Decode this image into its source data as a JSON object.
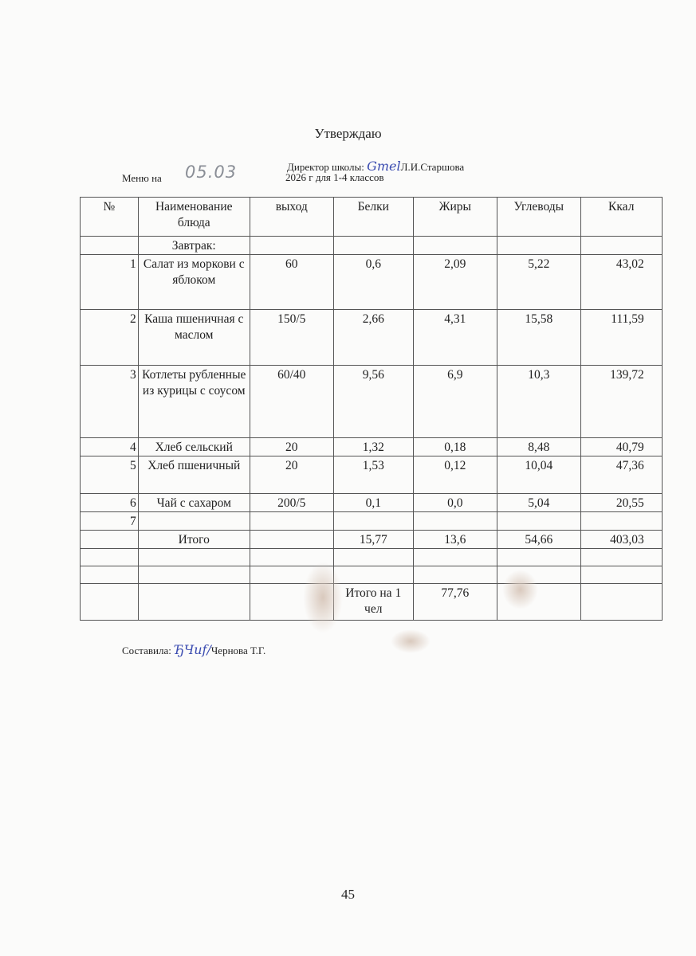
{
  "header": {
    "title": "Утверждаю",
    "director_label": "Директор школы:",
    "director_signature": "signature",
    "director_name": "Л.И.Старшова",
    "menu_label": "Меню на",
    "menu_date": "05.03",
    "year_line": "2026 г для 1-4 классов"
  },
  "table": {
    "columns": [
      "№",
      "Наименование блюда",
      "выход",
      "Белки",
      "Жиры",
      "Углеводы",
      "Ккал"
    ],
    "section": "Завтрак:",
    "rows": [
      [
        "1",
        "Салат из моркови с яблоком",
        "60",
        "0,6",
        "2,09",
        "5,22",
        "43,02"
      ],
      [
        "2",
        "Каша пшеничная с маслом",
        "150/5",
        "2,66",
        "4,31",
        "15,58",
        "111,59"
      ],
      [
        "3",
        "Котлеты рубленные из курицы с соусом",
        "60/40",
        "9,56",
        "6,9",
        "10,3",
        "139,72"
      ],
      [
        "4",
        "Хлеб сельский",
        "20",
        "1,32",
        "0,18",
        "8,48",
        "40,79"
      ],
      [
        "5",
        "Хлеб пшеничный",
        "20",
        "1,53",
        "0,12",
        "10,04",
        "47,36"
      ],
      [
        "6",
        "Чай с сахаром",
        "200/5",
        "0,1",
        "0,0",
        "5,04",
        "20,55"
      ],
      [
        "7",
        "",
        "",
        "",
        "",
        "",
        ""
      ]
    ],
    "total": [
      "",
      "Итого",
      "",
      "15,77",
      "13,6",
      "54,66",
      "403,03"
    ],
    "per_person_label": "Итого на 1 чел",
    "per_person_value": "77,76"
  },
  "footer": {
    "compiled_label": "Составила:",
    "compiled_signature": "signature",
    "compiled_name": "Чернова Т.Г.",
    "page_number": "45"
  }
}
